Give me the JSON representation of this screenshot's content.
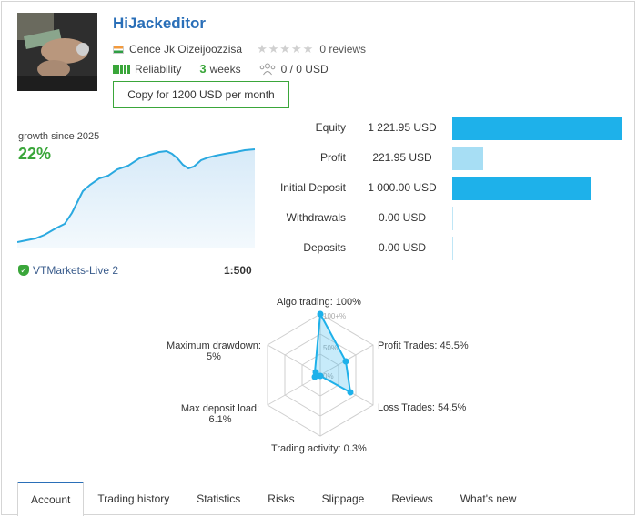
{
  "header": {
    "title": "HiJackeditor",
    "author": "Cence Jk Oizeijoozzisa",
    "reviews": "0 reviews",
    "reliability_label": "Reliability",
    "age_value": "3",
    "age_unit": "weeks",
    "subscribers": "0 / 0 USD",
    "copy_button": "Copy for 1200 USD per month"
  },
  "growth": {
    "label": "growth since 2025",
    "value": "22%"
  },
  "account": {
    "server": "VTMarkets-Live 2",
    "leverage": "1:500"
  },
  "stats": [
    {
      "label": "Equity",
      "value": "1 221.95 USD",
      "amount": 1221.95
    },
    {
      "label": "Profit",
      "value": "221.95 USD",
      "amount": 221.95
    },
    {
      "label": "Initial Deposit",
      "value": "1 000.00 USD",
      "amount": 1000.0
    },
    {
      "label": "Withdrawals",
      "value": "0.00 USD",
      "amount": 0
    },
    {
      "label": "Deposits",
      "value": "0.00 USD",
      "amount": 0
    }
  ],
  "radar": {
    "algo": "Algo trading: 100%",
    "profit_trades": "Profit Trades: 45.5%",
    "loss_trades": "Loss Trades: 54.5%",
    "trading_activity": "Trading activity: 0.3%",
    "max_deposit_load_label": "Max deposit load:",
    "max_deposit_load_value": "6.1%",
    "max_drawdown_label": "Maximum drawdown:",
    "max_drawdown_value": "5%",
    "scale_100": "100+%",
    "scale_50": "50%",
    "scale_0": "0%",
    "values": [
      100,
      45.5,
      54.5,
      0.3,
      6.1,
      5
    ]
  },
  "tabs": [
    {
      "label": "Account"
    },
    {
      "label": "Trading history"
    },
    {
      "label": "Statistics"
    },
    {
      "label": "Risks"
    },
    {
      "label": "Slippage"
    },
    {
      "label": "Reviews"
    },
    {
      "label": "What's new"
    }
  ],
  "colors": {
    "accent": "#2a6fb8",
    "green": "#3aa63a",
    "bar": "#1eb1ea",
    "bar_light": "#a7def4"
  }
}
